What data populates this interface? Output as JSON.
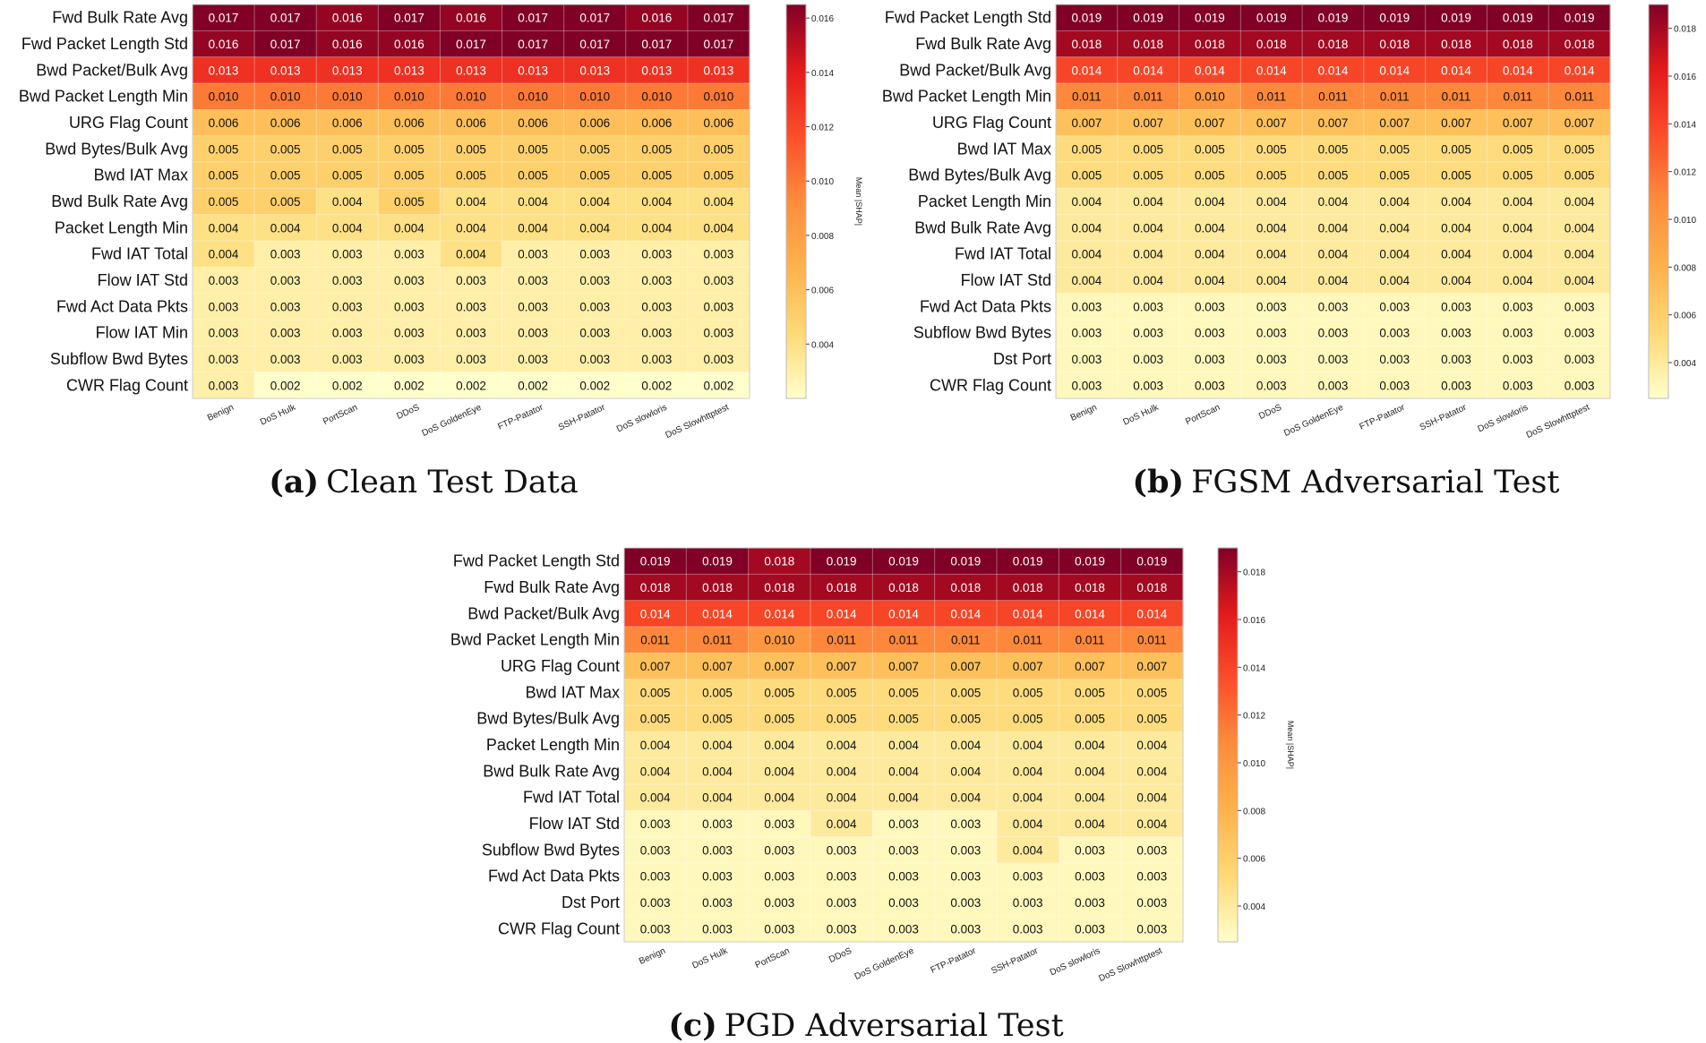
{
  "colors": {
    "low": "#ffffcc",
    "mid1": "#fed976",
    "mid2": "#feb24c",
    "mid3": "#fd8d3c",
    "mid4": "#fc4e2a",
    "mid5": "#e31a1c",
    "high": "#800026"
  },
  "chart_data": [
    {
      "type": "heatmap",
      "id": "a",
      "caption_letter": "(a)",
      "caption_text": "Clean Test Data",
      "colorbar_label": "Mean |SHAP|",
      "colorbar_range": [
        0.002,
        0.0165
      ],
      "colorbar_ticks": [
        "0.004",
        "0.006",
        "0.008",
        "0.010",
        "0.012",
        "0.014",
        "0.016"
      ],
      "categories": [
        "Benign",
        "DoS Hulk",
        "PortScan",
        "DDoS",
        "DoS GoldenEye",
        "FTP-Patator",
        "SSH-Patator",
        "DoS slowloris",
        "DoS Slowhttptest"
      ],
      "features": [
        "Fwd Bulk Rate Avg",
        "Fwd Packet Length Std",
        "Bwd Packet/Bulk Avg",
        "Bwd Packet Length Min",
        "URG Flag Count",
        "Bwd Bytes/Bulk Avg",
        "Bwd IAT Max",
        "Bwd Bulk Rate Avg",
        "Packet Length Min",
        "Fwd IAT Total",
        "Flow IAT Std",
        "Fwd Act Data Pkts",
        "Flow IAT Min",
        "Subflow Bwd Bytes",
        "CWR Flag Count"
      ],
      "values": [
        [
          "0.017",
          "0.017",
          "0.016",
          "0.017",
          "0.016",
          "0.017",
          "0.017",
          "0.016",
          "0.017"
        ],
        [
          "0.016",
          "0.017",
          "0.016",
          "0.016",
          "0.017",
          "0.017",
          "0.017",
          "0.017",
          "0.017"
        ],
        [
          "0.013",
          "0.013",
          "0.013",
          "0.013",
          "0.013",
          "0.013",
          "0.013",
          "0.013",
          "0.013"
        ],
        [
          "0.010",
          "0.010",
          "0.010",
          "0.010",
          "0.010",
          "0.010",
          "0.010",
          "0.010",
          "0.010"
        ],
        [
          "0.006",
          "0.006",
          "0.006",
          "0.006",
          "0.006",
          "0.006",
          "0.006",
          "0.006",
          "0.006"
        ],
        [
          "0.005",
          "0.005",
          "0.005",
          "0.005",
          "0.005",
          "0.005",
          "0.005",
          "0.005",
          "0.005"
        ],
        [
          "0.005",
          "0.005",
          "0.005",
          "0.005",
          "0.005",
          "0.005",
          "0.005",
          "0.005",
          "0.005"
        ],
        [
          "0.005",
          "0.005",
          "0.004",
          "0.005",
          "0.004",
          "0.004",
          "0.004",
          "0.004",
          "0.004"
        ],
        [
          "0.004",
          "0.004",
          "0.004",
          "0.004",
          "0.004",
          "0.004",
          "0.004",
          "0.004",
          "0.004"
        ],
        [
          "0.004",
          "0.003",
          "0.003",
          "0.003",
          "0.004",
          "0.003",
          "0.003",
          "0.003",
          "0.003"
        ],
        [
          "0.003",
          "0.003",
          "0.003",
          "0.003",
          "0.003",
          "0.003",
          "0.003",
          "0.003",
          "0.003"
        ],
        [
          "0.003",
          "0.003",
          "0.003",
          "0.003",
          "0.003",
          "0.003",
          "0.003",
          "0.003",
          "0.003"
        ],
        [
          "0.003",
          "0.003",
          "0.003",
          "0.003",
          "0.003",
          "0.003",
          "0.003",
          "0.003",
          "0.003"
        ],
        [
          "0.003",
          "0.003",
          "0.003",
          "0.003",
          "0.003",
          "0.003",
          "0.003",
          "0.003",
          "0.003"
        ],
        [
          "0.003",
          "0.002",
          "0.002",
          "0.002",
          "0.002",
          "0.002",
          "0.002",
          "0.002",
          "0.002"
        ]
      ]
    },
    {
      "type": "heatmap",
      "id": "b",
      "caption_letter": "(b)",
      "caption_text": "FGSM Adversarial Test",
      "colorbar_label": "Mean |SHAP|",
      "colorbar_range": [
        0.0025,
        0.019
      ],
      "colorbar_ticks": [
        "0.004",
        "0.006",
        "0.008",
        "0.010",
        "0.012",
        "0.014",
        "0.016",
        "0.018"
      ],
      "categories": [
        "Benign",
        "DoS Hulk",
        "PortScan",
        "DDoS",
        "DoS GoldenEye",
        "FTP-Patator",
        "SSH-Patator",
        "DoS slowloris",
        "DoS Slowhttptest"
      ],
      "features": [
        "Fwd Packet Length Std",
        "Fwd Bulk Rate Avg",
        "Bwd Packet/Bulk Avg",
        "Bwd Packet Length Min",
        "URG Flag Count",
        "Bwd IAT Max",
        "Bwd Bytes/Bulk Avg",
        "Packet Length Min",
        "Bwd Bulk Rate Avg",
        "Fwd IAT Total",
        "Flow IAT Std",
        "Fwd Act Data Pkts",
        "Subflow Bwd Bytes",
        "Dst Port",
        "CWR Flag Count"
      ],
      "values": [
        [
          "0.019",
          "0.019",
          "0.019",
          "0.019",
          "0.019",
          "0.019",
          "0.019",
          "0.019",
          "0.019"
        ],
        [
          "0.018",
          "0.018",
          "0.018",
          "0.018",
          "0.018",
          "0.018",
          "0.018",
          "0.018",
          "0.018"
        ],
        [
          "0.014",
          "0.014",
          "0.014",
          "0.014",
          "0.014",
          "0.014",
          "0.014",
          "0.014",
          "0.014"
        ],
        [
          "0.011",
          "0.011",
          "0.010",
          "0.011",
          "0.011",
          "0.011",
          "0.011",
          "0.011",
          "0.011"
        ],
        [
          "0.007",
          "0.007",
          "0.007",
          "0.007",
          "0.007",
          "0.007",
          "0.007",
          "0.007",
          "0.007"
        ],
        [
          "0.005",
          "0.005",
          "0.005",
          "0.005",
          "0.005",
          "0.005",
          "0.005",
          "0.005",
          "0.005"
        ],
        [
          "0.005",
          "0.005",
          "0.005",
          "0.005",
          "0.005",
          "0.005",
          "0.005",
          "0.005",
          "0.005"
        ],
        [
          "0.004",
          "0.004",
          "0.004",
          "0.004",
          "0.004",
          "0.004",
          "0.004",
          "0.004",
          "0.004"
        ],
        [
          "0.004",
          "0.004",
          "0.004",
          "0.004",
          "0.004",
          "0.004",
          "0.004",
          "0.004",
          "0.004"
        ],
        [
          "0.004",
          "0.004",
          "0.004",
          "0.004",
          "0.004",
          "0.004",
          "0.004",
          "0.004",
          "0.004"
        ],
        [
          "0.004",
          "0.004",
          "0.004",
          "0.004",
          "0.004",
          "0.004",
          "0.004",
          "0.004",
          "0.004"
        ],
        [
          "0.003",
          "0.003",
          "0.003",
          "0.003",
          "0.003",
          "0.003",
          "0.003",
          "0.003",
          "0.003"
        ],
        [
          "0.003",
          "0.003",
          "0.003",
          "0.003",
          "0.003",
          "0.003",
          "0.003",
          "0.003",
          "0.003"
        ],
        [
          "0.003",
          "0.003",
          "0.003",
          "0.003",
          "0.003",
          "0.003",
          "0.003",
          "0.003",
          "0.003"
        ],
        [
          "0.003",
          "0.003",
          "0.003",
          "0.003",
          "0.003",
          "0.003",
          "0.003",
          "0.003",
          "0.003"
        ]
      ]
    },
    {
      "type": "heatmap",
      "id": "c",
      "caption_letter": "(c)",
      "caption_text": "PGD Adversarial Test",
      "colorbar_label": "Mean |SHAP|",
      "colorbar_range": [
        0.0025,
        0.019
      ],
      "colorbar_ticks": [
        "0.004",
        "0.006",
        "0.008",
        "0.010",
        "0.012",
        "0.014",
        "0.016",
        "0.018"
      ],
      "categories": [
        "Benign",
        "DoS Hulk",
        "PortScan",
        "DDoS",
        "DoS GoldenEye",
        "FTP-Patator",
        "SSH-Patator",
        "DoS slowloris",
        "DoS Slowhttptest"
      ],
      "features": [
        "Fwd Packet Length Std",
        "Fwd Bulk Rate Avg",
        "Bwd Packet/Bulk Avg",
        "Bwd Packet Length Min",
        "URG Flag Count",
        "Bwd IAT Max",
        "Bwd Bytes/Bulk Avg",
        "Packet Length Min",
        "Bwd Bulk Rate Avg",
        "Fwd IAT Total",
        "Flow IAT Std",
        "Subflow Bwd Bytes",
        "Fwd Act Data Pkts",
        "Dst Port",
        "CWR Flag Count"
      ],
      "values": [
        [
          "0.019",
          "0.019",
          "0.018",
          "0.019",
          "0.019",
          "0.019",
          "0.019",
          "0.019",
          "0.019"
        ],
        [
          "0.018",
          "0.018",
          "0.018",
          "0.018",
          "0.018",
          "0.018",
          "0.018",
          "0.018",
          "0.018"
        ],
        [
          "0.014",
          "0.014",
          "0.014",
          "0.014",
          "0.014",
          "0.014",
          "0.014",
          "0.014",
          "0.014"
        ],
        [
          "0.011",
          "0.011",
          "0.010",
          "0.011",
          "0.011",
          "0.011",
          "0.011",
          "0.011",
          "0.011"
        ],
        [
          "0.007",
          "0.007",
          "0.007",
          "0.007",
          "0.007",
          "0.007",
          "0.007",
          "0.007",
          "0.007"
        ],
        [
          "0.005",
          "0.005",
          "0.005",
          "0.005",
          "0.005",
          "0.005",
          "0.005",
          "0.005",
          "0.005"
        ],
        [
          "0.005",
          "0.005",
          "0.005",
          "0.005",
          "0.005",
          "0.005",
          "0.005",
          "0.005",
          "0.005"
        ],
        [
          "0.004",
          "0.004",
          "0.004",
          "0.004",
          "0.004",
          "0.004",
          "0.004",
          "0.004",
          "0.004"
        ],
        [
          "0.004",
          "0.004",
          "0.004",
          "0.004",
          "0.004",
          "0.004",
          "0.004",
          "0.004",
          "0.004"
        ],
        [
          "0.004",
          "0.004",
          "0.004",
          "0.004",
          "0.004",
          "0.004",
          "0.004",
          "0.004",
          "0.004"
        ],
        [
          "0.003",
          "0.003",
          "0.003",
          "0.004",
          "0.003",
          "0.003",
          "0.004",
          "0.004",
          "0.004"
        ],
        [
          "0.003",
          "0.003",
          "0.003",
          "0.003",
          "0.003",
          "0.003",
          "0.004",
          "0.003",
          "0.003"
        ],
        [
          "0.003",
          "0.003",
          "0.003",
          "0.003",
          "0.003",
          "0.003",
          "0.003",
          "0.003",
          "0.003"
        ],
        [
          "0.003",
          "0.003",
          "0.003",
          "0.003",
          "0.003",
          "0.003",
          "0.003",
          "0.003",
          "0.003"
        ],
        [
          "0.003",
          "0.003",
          "0.003",
          "0.003",
          "0.003",
          "0.003",
          "0.003",
          "0.003",
          "0.003"
        ]
      ]
    }
  ]
}
